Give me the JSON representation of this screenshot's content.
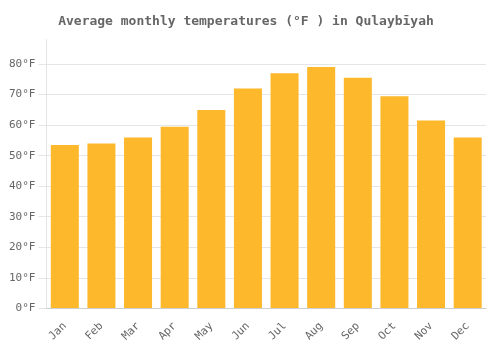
{
  "chart_data": {
    "type": "bar",
    "title": "Average monthly temperatures (°F ) in Qulaybīyah",
    "categories": [
      "Jan",
      "Feb",
      "Mar",
      "Apr",
      "May",
      "Jun",
      "Jul",
      "Aug",
      "Sep",
      "Oct",
      "Nov",
      "Dec"
    ],
    "values": [
      53.5,
      54.0,
      56.0,
      59.5,
      65.0,
      72.0,
      77.0,
      79.0,
      75.5,
      69.5,
      61.5,
      56.0
    ],
    "color": "#FDB82B",
    "ylim": [
      0,
      88
    ],
    "yticks": [
      {
        "value": 0,
        "label": "0°F"
      },
      {
        "value": 10,
        "label": "10°F"
      },
      {
        "value": 20,
        "label": "20°F"
      },
      {
        "value": 30,
        "label": "30°F"
      },
      {
        "value": 40,
        "label": "40°F"
      },
      {
        "value": 50,
        "label": "50°F"
      },
      {
        "value": 60,
        "label": "60°F"
      },
      {
        "value": 70,
        "label": "70°F"
      },
      {
        "value": 80,
        "label": "80°F"
      }
    ],
    "grid": true
  }
}
